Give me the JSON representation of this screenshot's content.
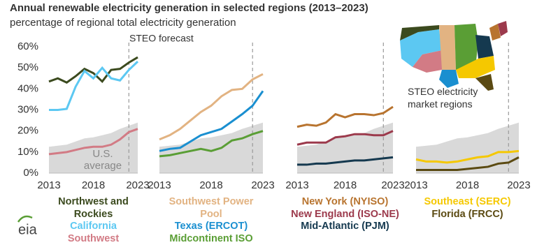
{
  "title": "Annual renewable electricity generation in selected regions (2013–2023)",
  "subtitle": "percentage of regional total electricity generation",
  "forecast_label": "STEO forecast",
  "map_label": "STEO electricity market regions",
  "logo": "eia",
  "chart_data": [
    {
      "type": "line",
      "x": [
        2013,
        2014,
        2015,
        2016,
        2017,
        2018,
        2019,
        2020,
        2021,
        2022,
        2023
      ],
      "xlim": [
        2013,
        2023
      ],
      "xticks": [
        2013,
        2018,
        2023
      ],
      "ylim": [
        0,
        60
      ],
      "yticks": [
        {
          "value": 0,
          "label": "0%"
        },
        {
          "value": 10,
          "label": "10%"
        },
        {
          "value": 20,
          "label": "20%"
        },
        {
          "value": 30,
          "label": "30%"
        },
        {
          "value": 40,
          "label": "40%"
        },
        {
          "value": 50,
          "label": "50%"
        },
        {
          "value": 60,
          "label": "60%"
        }
      ],
      "forecast_start": 2022,
      "shaded_area": {
        "color": "#d9d9d9",
        "values": [
          12.5,
          13,
          13.5,
          15,
          16.5,
          17,
          18,
          19,
          21,
          22.5,
          24
        ]
      },
      "annotation": [
        "U.S.",
        "average"
      ],
      "series": [
        {
          "name": "Northwest and Rockies",
          "color": "#3b4a1e",
          "values": [
            43.5,
            45,
            43,
            46,
            49.5,
            47.5,
            43.5,
            49,
            49.5,
            52.5,
            55
          ]
        },
        {
          "name": "California",
          "color": "#5cc8f2",
          "values": [
            30,
            30,
            30.5,
            41,
            48.5,
            45,
            50,
            45,
            44,
            49,
            53
          ]
        },
        {
          "name": "Southwest",
          "color": "#d27b85",
          "values": [
            9,
            9.5,
            10,
            11,
            12,
            12.5,
            12.5,
            13.5,
            16,
            19.5,
            21
          ]
        }
      ]
    },
    {
      "type": "line",
      "x": [
        2013,
        2014,
        2015,
        2016,
        2017,
        2018,
        2019,
        2020,
        2021,
        2022,
        2023
      ],
      "xlim": [
        2013,
        2023
      ],
      "xticks": [
        2013,
        2018,
        2023
      ],
      "ylim": [
        0,
        60
      ],
      "forecast_start": 2022,
      "shaded_area": {
        "color": "#d9d9d9",
        "values": [
          12.5,
          13,
          13.5,
          15,
          16.5,
          17,
          18,
          19,
          21,
          22.5,
          24
        ]
      },
      "series": [
        {
          "name": "Southwest Power Pool",
          "color": "#e2b382",
          "values": [
            16,
            18,
            21,
            25,
            29,
            32,
            36.5,
            39.5,
            40,
            44.5,
            47
          ]
        },
        {
          "name": "Texas (ERCOT)",
          "color": "#1a8fd0",
          "values": [
            10.5,
            11.5,
            12,
            15,
            18,
            19.5,
            21,
            24.5,
            28,
            32,
            39
          ]
        },
        {
          "name": "Midcontinent ISO",
          "color": "#5a9e35",
          "values": [
            8,
            8.5,
            9.5,
            10.5,
            11.5,
            10.5,
            12,
            15.5,
            16.5,
            18.5,
            20
          ]
        }
      ]
    },
    {
      "type": "line",
      "x": [
        2013,
        2014,
        2015,
        2016,
        2017,
        2018,
        2019,
        2020,
        2021,
        2022,
        2023
      ],
      "xlim": [
        2013,
        2023
      ],
      "xticks": [
        2013,
        2018,
        2023
      ],
      "ylim": [
        0,
        60
      ],
      "forecast_start": 2022,
      "shaded_area": {
        "color": "#d9d9d9",
        "values": [
          12.5,
          13,
          13.5,
          15,
          16.5,
          17,
          18,
          19,
          21,
          22.5,
          24
        ]
      },
      "series": [
        {
          "name": "New York (NYISO)",
          "color": "#b8742f",
          "values": [
            22,
            23,
            22.5,
            24,
            28,
            26.5,
            28,
            28,
            27.5,
            28.5,
            31.5
          ]
        },
        {
          "name": "New England (ISO-NE)",
          "color": "#9c3a4c",
          "values": [
            13.5,
            14.5,
            14.5,
            14.5,
            17,
            17.5,
            18.5,
            18.5,
            18,
            18,
            20
          ]
        },
        {
          "name": "Mid-Atlantic (PJM)",
          "color": "#15394f",
          "values": [
            4,
            4,
            4.5,
            4.5,
            5,
            5.5,
            6,
            6,
            6.5,
            7,
            7.5
          ]
        }
      ]
    },
    {
      "type": "line",
      "x": [
        2013,
        2014,
        2015,
        2016,
        2017,
        2018,
        2019,
        2020,
        2021,
        2022,
        2023
      ],
      "xlim": [
        2013,
        2023
      ],
      "xticks": [
        2013,
        2018,
        2023
      ],
      "ylim": [
        0,
        60
      ],
      "forecast_start": 2022,
      "shaded_area": {
        "color": "#d9d9d9",
        "values": [
          12.5,
          13,
          13.5,
          15,
          16.5,
          17,
          18,
          19,
          21,
          22.5,
          24
        ]
      },
      "series": [
        {
          "name": "Southeast (SERC)",
          "color": "#f5c800",
          "values": [
            6.5,
            5.5,
            5.5,
            5,
            5.5,
            6.5,
            7.5,
            8,
            10,
            10,
            10.5
          ]
        },
        {
          "name": "Florida (FRCC)",
          "color": "#5b4a12",
          "values": [
            1.5,
            1.5,
            1.5,
            1.5,
            1.5,
            2,
            2.5,
            3,
            4.5,
            5,
            7.5
          ]
        }
      ]
    }
  ]
}
